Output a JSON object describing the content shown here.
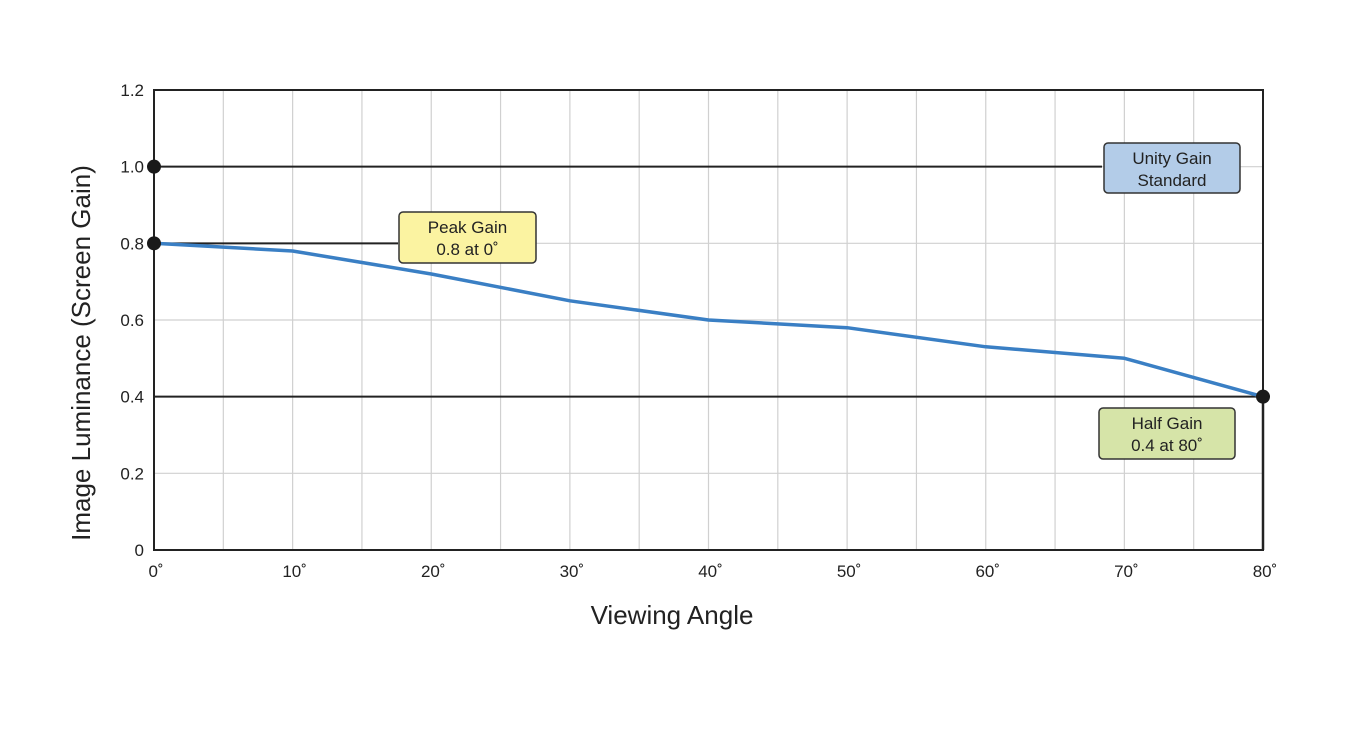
{
  "chart_data": {
    "type": "line",
    "title": "",
    "xlabel": "Viewing Angle",
    "ylabel": "Image Luminance (Screen Gain)",
    "xlim": [
      0,
      80
    ],
    "ylim": [
      0,
      1.2
    ],
    "x_ticks": [
      "0˚",
      "10˚",
      "20˚",
      "30˚",
      "40˚",
      "50˚",
      "60˚",
      "70˚",
      "80˚"
    ],
    "y_ticks": [
      "0",
      "0.2",
      "0.4",
      "0.6",
      "0.8",
      "1.0",
      "1.2"
    ],
    "grid": true,
    "series": [
      {
        "color": "#3a7fc4",
        "x": [
          0,
          10,
          20,
          30,
          40,
          50,
          60,
          70,
          80
        ],
        "y": [
          0.8,
          0.78,
          0.72,
          0.65,
          0.6,
          0.58,
          0.53,
          0.5,
          0.4
        ]
      }
    ],
    "reference_lines": [
      {
        "y": 1.0
      },
      {
        "y": 0.8
      },
      {
        "y": 0.4
      }
    ],
    "annotations": [
      {
        "lines": [
          "Unity Gain",
          "Standard"
        ],
        "fill": "#b3cce8"
      },
      {
        "lines": [
          "Peak Gain",
          "0.8 at 0˚"
        ],
        "fill": "#fbf3a1"
      },
      {
        "lines": [
          "Half Gain",
          "0.4 at 80˚"
        ],
        "fill": "#d6e4a8"
      }
    ]
  }
}
